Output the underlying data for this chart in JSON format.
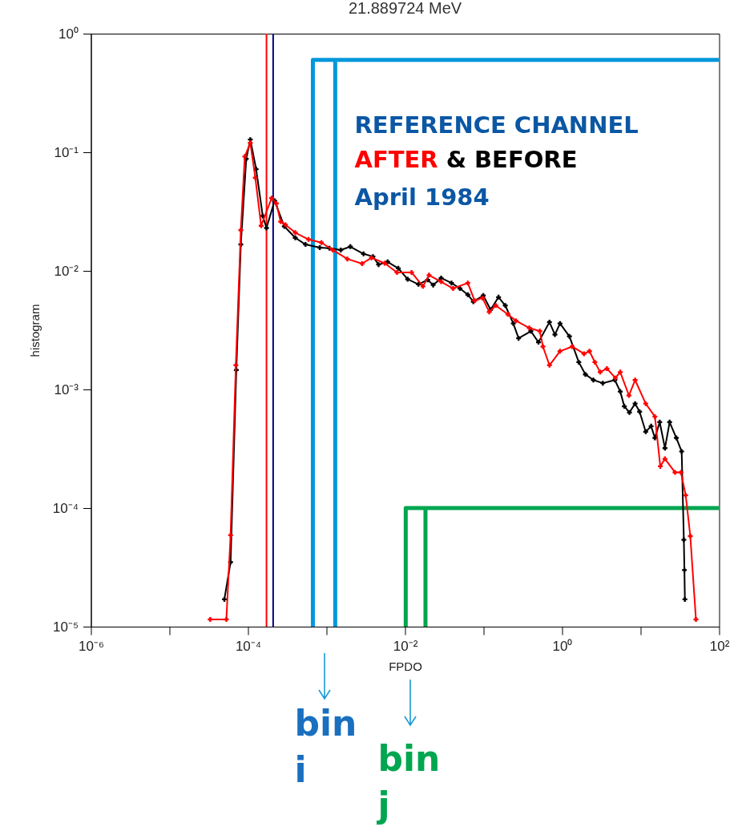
{
  "chart_data": {
    "type": "line",
    "title": "21.889724 MeV",
    "xlabel": "FPDO",
    "ylabel": "histogram",
    "log": "xy",
    "grid": false,
    "marker": "cross",
    "legend": "top right",
    "xlim": [
      1e-06,
      100
    ],
    "ylim": [
      1e-05,
      1
    ],
    "xticks": [
      {
        "value": 1e-06,
        "label": "10⁻⁶"
      },
      {
        "value": 1e-05,
        "label": null
      },
      {
        "value": 0.0001,
        "label": "10⁻⁴"
      },
      {
        "value": 0.001,
        "label": null
      },
      {
        "value": 0.01,
        "label": "10⁻²"
      },
      {
        "value": 0.1,
        "label": null
      },
      {
        "value": 1,
        "label": "10⁰"
      },
      {
        "value": 10,
        "label": null
      },
      {
        "value": 100,
        "label": "10²"
      }
    ],
    "yticks": [
      {
        "value": 1e-05,
        "label": "10⁻⁵"
      },
      {
        "value": 0.0001,
        "label": "10⁻⁴"
      },
      {
        "value": 0.001,
        "label": "10⁻³"
      },
      {
        "value": 0.01,
        "label": "10⁻²"
      },
      {
        "value": 0.1,
        "label": "10⁻¹"
      },
      {
        "value": 1,
        "label": "10⁰"
      }
    ],
    "series": [
      {
        "name": "AFTER",
        "color": "#ff0000",
        "x": [
          3.3e-05,
          5.3e-05,
          6e-05,
          7e-05,
          8.1e-05,
          9.1e-05,
          0.000107,
          0.000124,
          0.000147,
          0.0002,
          0.00023,
          0.00026,
          0.0003,
          0.0004,
          0.00059,
          0.00086,
          0.0012,
          0.00184,
          0.00284,
          0.00374,
          0.0055,
          0.0079,
          0.0121,
          0.0169,
          0.0202,
          0.0288,
          0.0409,
          0.063,
          0.077,
          0.097,
          0.118,
          0.143,
          0.204,
          0.258,
          0.382,
          0.52,
          0.57,
          0.69,
          0.94,
          1.34,
          1.9,
          2.23,
          2.61,
          3.05,
          3.72,
          4.76,
          5.5,
          7.1,
          8.5,
          11.6,
          15.2,
          17.8,
          20.4,
          27.4,
          32.6,
          37.5,
          42.9,
          50.6
        ],
        "values": [
          1.15e-05,
          1.15e-05,
          5.9e-05,
          0.0016,
          0.022,
          0.092,
          0.12,
          0.061,
          0.024,
          0.041,
          0.037,
          0.026,
          0.0245,
          0.021,
          0.0184,
          0.0173,
          0.015,
          0.0126,
          0.0115,
          0.0129,
          0.0116,
          0.0097,
          0.0097,
          0.0074,
          0.0092,
          0.0081,
          0.0071,
          0.0079,
          0.0056,
          0.0059,
          0.0045,
          0.0051,
          0.0043,
          0.0038,
          0.0033,
          0.0031,
          0.0023,
          0.0016,
          0.0021,
          0.0023,
          0.002,
          0.0021,
          0.0017,
          0.0014,
          0.0015,
          0.00125,
          0.0014,
          0.00089,
          0.0012,
          0.00076,
          0.00059,
          0.000225,
          0.00026,
          0.0002,
          0.0002,
          0.000128,
          5.8e-05,
          1.15e-05
        ]
      },
      {
        "name": "BEFORE",
        "color": "#000000",
        "x": [
          5e-05,
          6e-05,
          7.1e-05,
          8.1e-05,
          9.5e-05,
          0.000107,
          0.000127,
          0.000154,
          0.000172,
          0.000218,
          0.00029,
          0.0004,
          0.00054,
          0.00082,
          0.00109,
          0.00152,
          0.00201,
          0.00296,
          0.0039,
          0.0046,
          0.006,
          0.0082,
          0.0108,
          0.0148,
          0.0194,
          0.0228,
          0.0288,
          0.039,
          0.05,
          0.063,
          0.074,
          0.099,
          0.123,
          0.155,
          0.189,
          0.239,
          0.279,
          0.4,
          0.5,
          0.69,
          0.81,
          0.94,
          1.24,
          1.63,
          1.98,
          2.5,
          3.3,
          4.7,
          5.5,
          6.2,
          7.2,
          8.5,
          9.7,
          11.6,
          13.6,
          15.2,
          17.5,
          20.4,
          23.4,
          28.5,
          33.3,
          35.5,
          36.1,
          36.6
        ],
        "values": [
          1.7e-05,
          3.5e-05,
          0.00146,
          0.0167,
          0.088,
          0.128,
          0.072,
          0.029,
          0.023,
          0.039,
          0.0237,
          0.019,
          0.0167,
          0.0157,
          0.0155,
          0.015,
          0.016,
          0.0139,
          0.0132,
          0.0113,
          0.0119,
          0.0105,
          0.0085,
          0.0077,
          0.0084,
          0.0076,
          0.0087,
          0.0079,
          0.0071,
          0.0063,
          0.0055,
          0.0062,
          0.0047,
          0.006,
          0.0051,
          0.0036,
          0.0027,
          0.0031,
          0.0025,
          0.0037,
          0.0029,
          0.0036,
          0.0028,
          0.0017,
          0.00134,
          0.0012,
          0.00113,
          0.0012,
          0.00096,
          0.00072,
          0.00064,
          0.00076,
          0.00065,
          0.00044,
          0.00049,
          0.00039,
          0.00053,
          0.00032,
          0.00053,
          0.00039,
          0.0003,
          5.4e-05,
          3e-05,
          1.7e-05
        ]
      },
      {
        "type": "line",
        "marker": "none",
        "color": "#0098db",
        "x": [
          0.00067,
          0.00067,
          0.00129,
          0.00129,
          0.00129,
          100
        ],
        "values": [
          1e-05,
          0.6,
          0.6,
          1e-05,
          0.6,
          0.6
        ]
      },
      {
        "type": "line",
        "marker": "none",
        "color": "#00a650",
        "x": [
          0.0102,
          0.0102,
          0.0182,
          0.0182,
          0.0182,
          100
        ],
        "values": [
          1e-05,
          0.0001,
          0.0001,
          1e-05,
          0.0001,
          0.0001
        ]
      }
    ],
    "ref_lines": [
      {
        "axis": "x",
        "value": 0.000172,
        "color": "#ff0000"
      },
      {
        "axis": "x",
        "value": 0.000209,
        "color": "#000080"
      }
    ],
    "annotations": [
      "REFERENCE CHANNEL",
      "&",
      "April 1984",
      "bin i",
      "bin j"
    ]
  }
}
